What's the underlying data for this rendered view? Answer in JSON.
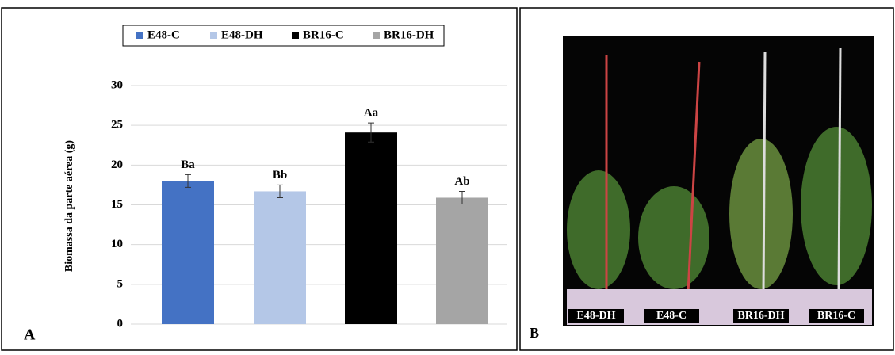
{
  "chart_data": {
    "type": "bar",
    "panel_label": "A",
    "y_label": "Biomassa da parte aérea (g)",
    "ylim": [
      0,
      30
    ],
    "yticks": [
      0,
      5,
      10,
      15,
      20,
      25,
      30
    ],
    "grid": true,
    "series": [
      {
        "name": "E48-C",
        "color": "#4472c4",
        "values": [
          18.0
        ],
        "errors": [
          0.8
        ],
        "annotations": [
          "Ba"
        ]
      },
      {
        "name": "E48-DH",
        "color": "#b4c7e7",
        "values": [
          16.7
        ],
        "errors": [
          0.8
        ],
        "annotations": [
          "Bb"
        ]
      },
      {
        "name": "BR16-C",
        "color": "#000000",
        "values": [
          24.1
        ],
        "errors": [
          1.2
        ],
        "annotations": [
          "Aa"
        ]
      },
      {
        "name": "BR16-DH",
        "color": "#a5a5a5",
        "values": [
          15.9
        ],
        "errors": [
          0.8
        ],
        "annotations": [
          "Ab"
        ]
      }
    ]
  },
  "photo": {
    "panel_label": "B",
    "labels": [
      "E48-DH",
      "E48-C",
      "BR16-DH",
      "BR16-C"
    ]
  }
}
